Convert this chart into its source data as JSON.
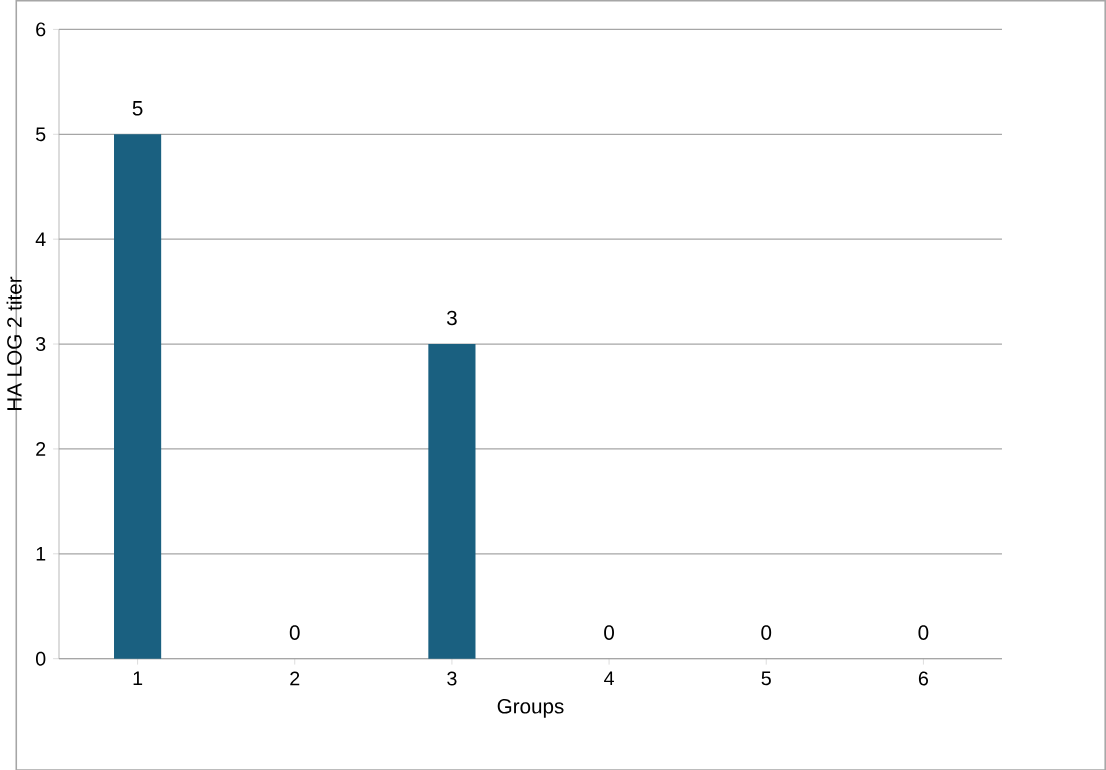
{
  "chart_data": {
    "type": "bar",
    "xlabel": "Groups",
    "ylabel": "HA LOG 2 titer",
    "categories": [
      "1",
      "2",
      "3",
      "4",
      "5",
      "6"
    ],
    "values": [
      5,
      0,
      3,
      0,
      0,
      0
    ],
    "color": "#1a6080",
    "ylim": [
      0,
      6
    ],
    "yticks": [
      0,
      1,
      2,
      3,
      4,
      5,
      6
    ],
    "grid": "y",
    "data_labels": true
  }
}
